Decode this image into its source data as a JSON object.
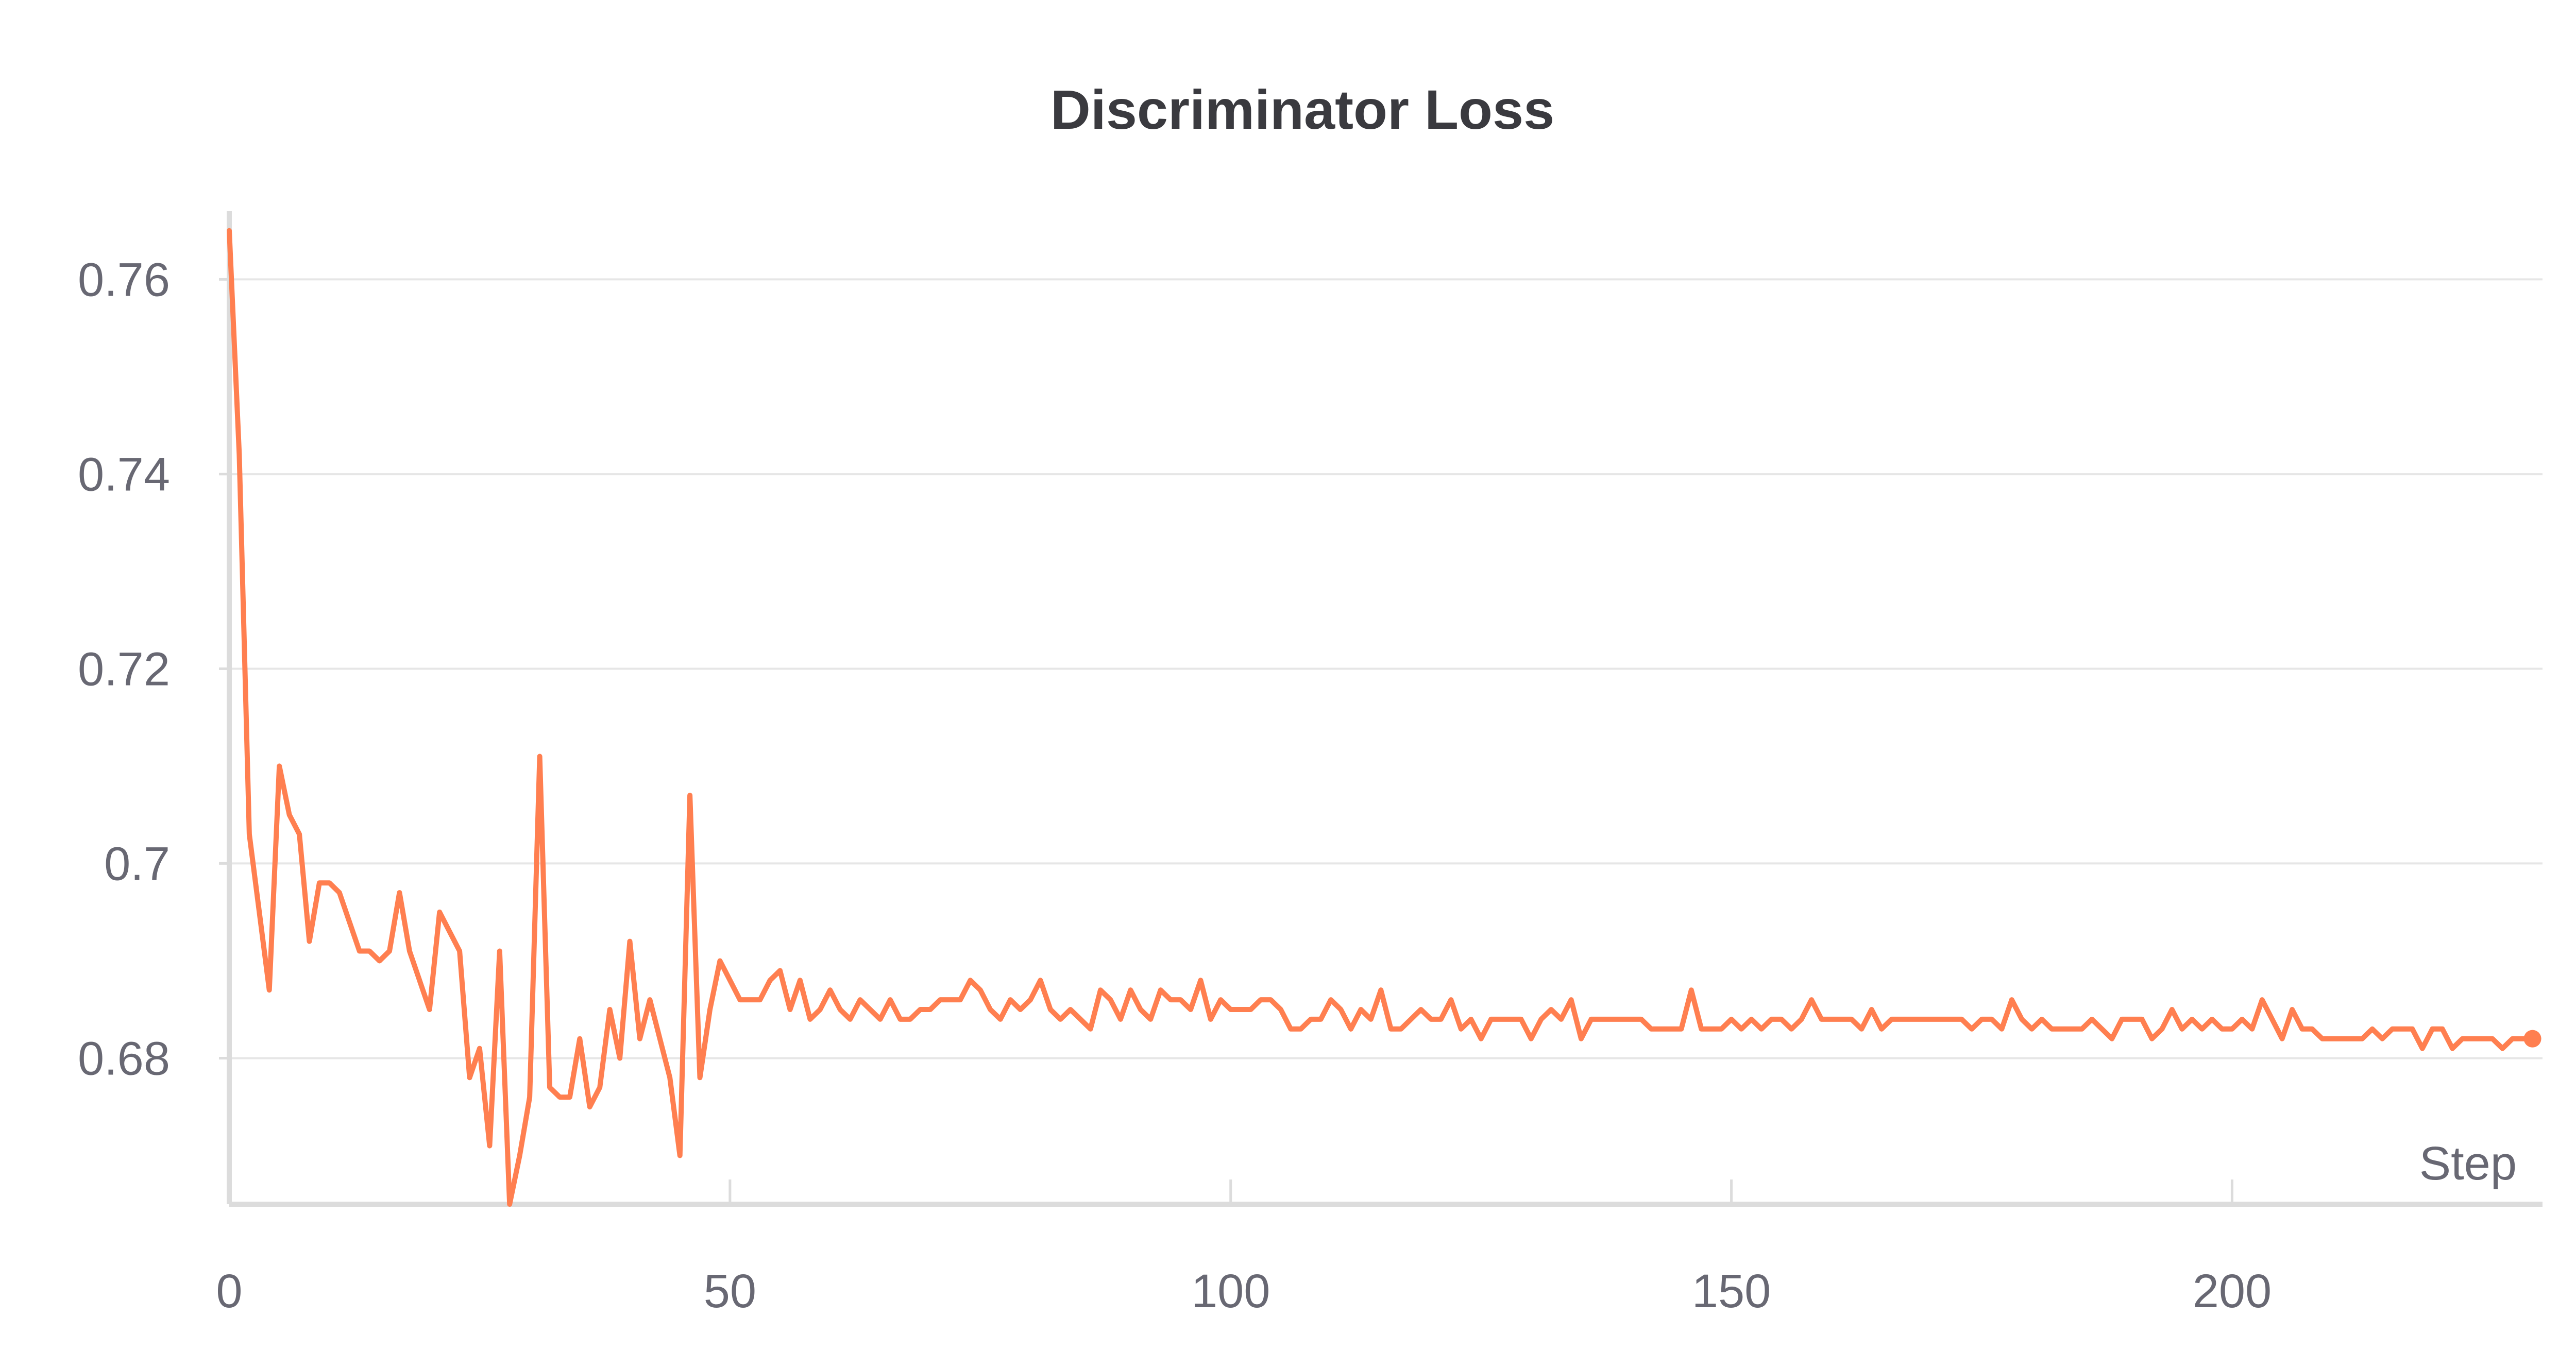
{
  "chart_data": {
    "type": "line",
    "title": "Discriminator Loss",
    "xlabel": "Step",
    "ylabel": "",
    "xlim": [
      0,
      231
    ],
    "ylim": [
      0.665,
      0.767
    ],
    "x_ticks": [
      0,
      50,
      100,
      150,
      200
    ],
    "x_tick_labels": [
      "0",
      "50",
      "100",
      "150",
      "200"
    ],
    "y_ticks": [
      0.68,
      0.7,
      0.72,
      0.74,
      0.76
    ],
    "y_tick_labels": [
      "0.68",
      "0.7",
      "0.72",
      "0.74",
      "0.76"
    ],
    "grid": true,
    "line_color": "#ff7f50",
    "grid_color": "#e6e6e6",
    "axis_color": "#dcdcdc",
    "series": [
      {
        "values": [
          0.765,
          0.742,
          0.703,
          0.695,
          0.687,
          0.71,
          0.705,
          0.703,
          0.692,
          0.698,
          0.698,
          0.697,
          0.694,
          0.691,
          0.691,
          0.69,
          0.691,
          0.697,
          0.691,
          0.688,
          0.685,
          0.695,
          0.693,
          0.691,
          0.678,
          0.681,
          0.671,
          0.691,
          0.665,
          0.67,
          0.676,
          0.711,
          0.677,
          0.676,
          0.676,
          0.682,
          0.675,
          0.677,
          0.685,
          0.68,
          0.692,
          0.682,
          0.686,
          0.682,
          0.678,
          0.67,
          0.707,
          0.678,
          0.685,
          0.69,
          0.688,
          0.686,
          0.686,
          0.686,
          0.688,
          0.689,
          0.685,
          0.688,
          0.684,
          0.685,
          0.687,
          0.685,
          0.684,
          0.686,
          0.685,
          0.684,
          0.686,
          0.684,
          0.684,
          0.685,
          0.685,
          0.686,
          0.686,
          0.686,
          0.688,
          0.687,
          0.685,
          0.684,
          0.686,
          0.685,
          0.686,
          0.688,
          0.685,
          0.684,
          0.685,
          0.684,
          0.683,
          0.687,
          0.686,
          0.684,
          0.687,
          0.685,
          0.684,
          0.687,
          0.686,
          0.686,
          0.685,
          0.688,
          0.684,
          0.686,
          0.685,
          0.685,
          0.685,
          0.686,
          0.686,
          0.685,
          0.683,
          0.683,
          0.684,
          0.684,
          0.686,
          0.685,
          0.683,
          0.685,
          0.684,
          0.687,
          0.683,
          0.683,
          0.684,
          0.685,
          0.684,
          0.684,
          0.686,
          0.683,
          0.684,
          0.682,
          0.684,
          0.684,
          0.684,
          0.684,
          0.682,
          0.684,
          0.685,
          0.684,
          0.686,
          0.682,
          0.684,
          0.684,
          0.684,
          0.684,
          0.684,
          0.684,
          0.683,
          0.683,
          0.683,
          0.683,
          0.687,
          0.683,
          0.683,
          0.683,
          0.684,
          0.683,
          0.684,
          0.683,
          0.684,
          0.684,
          0.683,
          0.684,
          0.686,
          0.684,
          0.684,
          0.684,
          0.684,
          0.683,
          0.685,
          0.683,
          0.684,
          0.684,
          0.684,
          0.684,
          0.684,
          0.684,
          0.684,
          0.684,
          0.683,
          0.684,
          0.684,
          0.683,
          0.686,
          0.684,
          0.683,
          0.684,
          0.683,
          0.683,
          0.683,
          0.683,
          0.684,
          0.683,
          0.682,
          0.684,
          0.684,
          0.684,
          0.682,
          0.683,
          0.685,
          0.683,
          0.684,
          0.683,
          0.684,
          0.683,
          0.683,
          0.684,
          0.683,
          0.686,
          0.684,
          0.682,
          0.685,
          0.683,
          0.683,
          0.682,
          0.682,
          0.682,
          0.682,
          0.682,
          0.683,
          0.682,
          0.683,
          0.683,
          0.683,
          0.681,
          0.683,
          0.683,
          0.681,
          0.682,
          0.682,
          0.682,
          0.682,
          0.681,
          0.682,
          0.682,
          0.682
        ]
      }
    ]
  }
}
